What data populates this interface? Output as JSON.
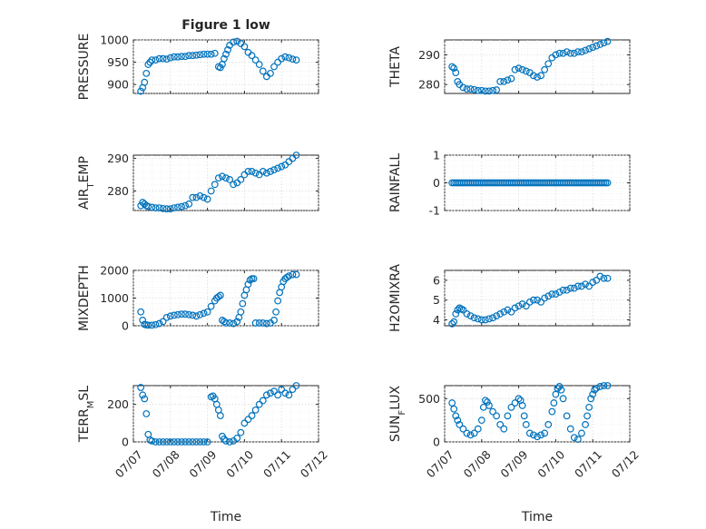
{
  "chart_data": [
    {
      "type": "scatter",
      "title": "Figure 1 low",
      "ylabel": "PRESSURE",
      "xlabel": "",
      "ylim": [
        880,
        1000
      ],
      "yticks": [
        900,
        950,
        1000
      ],
      "xlim": [
        0,
        5
      ],
      "xticks": [
        0,
        1,
        2,
        3,
        4,
        5
      ],
      "xtick_labels": [
        "07/07",
        "07/08",
        "07/09",
        "07/10",
        "07/11",
        "07/12"
      ],
      "color": "#0072bd",
      "x": [
        0.2,
        0.25,
        0.3,
        0.35,
        0.4,
        0.45,
        0.5,
        0.6,
        0.7,
        0.8,
        0.9,
        1.0,
        1.1,
        1.2,
        1.3,
        1.4,
        1.5,
        1.6,
        1.7,
        1.8,
        1.9,
        2.0,
        2.1,
        2.2,
        2.3,
        2.35,
        2.4,
        2.45,
        2.5,
        2.55,
        2.6,
        2.7,
        2.8,
        2.9,
        3.0,
        3.1,
        3.2,
        3.3,
        3.4,
        3.5,
        3.6,
        3.7,
        3.8,
        3.9,
        4.0,
        4.1,
        4.2,
        4.3,
        4.4
      ],
      "y": [
        885,
        893,
        905,
        925,
        945,
        950,
        955,
        955,
        958,
        958,
        957,
        960,
        962,
        962,
        963,
        963,
        965,
        965,
        966,
        967,
        968,
        968,
        968,
        970,
        940,
        938,
        945,
        958,
        968,
        978,
        988,
        995,
        997,
        992,
        985,
        972,
        965,
        955,
        945,
        930,
        918,
        925,
        940,
        950,
        958,
        962,
        960,
        957,
        955
      ]
    },
    {
      "type": "scatter",
      "ylabel": "THETA",
      "xlabel": "",
      "ylim": [
        277,
        295
      ],
      "yticks": [
        280,
        290
      ],
      "xlim": [
        0,
        5
      ],
      "xticks": [
        0,
        1,
        2,
        3,
        4,
        5
      ],
      "xtick_labels": [
        "07/07",
        "07/08",
        "07/09",
        "07/10",
        "07/11",
        "07/12"
      ],
      "color": "#0072bd",
      "x": [
        0.2,
        0.25,
        0.3,
        0.35,
        0.4,
        0.5,
        0.6,
        0.7,
        0.8,
        0.9,
        1.0,
        1.1,
        1.2,
        1.3,
        1.4,
        1.5,
        1.6,
        1.7,
        1.8,
        1.9,
        2.0,
        2.1,
        2.2,
        2.3,
        2.4,
        2.5,
        2.6,
        2.7,
        2.8,
        2.9,
        3.0,
        3.1,
        3.2,
        3.3,
        3.4,
        3.5,
        3.6,
        3.7,
        3.8,
        3.9,
        4.0,
        4.1,
        4.2,
        4.3,
        4.4
      ],
      "y": [
        286,
        285.5,
        284,
        281,
        280,
        279,
        278.5,
        278.5,
        278.3,
        278,
        278,
        277.8,
        277.8,
        278,
        278.2,
        281,
        281,
        281.5,
        282,
        285,
        285.5,
        285,
        284.5,
        284,
        283,
        282.5,
        283,
        285,
        287,
        289,
        290,
        290.5,
        290.5,
        291,
        290.5,
        290.5,
        291,
        291,
        291.5,
        292,
        292.5,
        293,
        293.5,
        294,
        294.5
      ]
    },
    {
      "type": "scatter",
      "ylabel": "AIR_TEMP",
      "xlabel": "",
      "ylim": [
        274,
        291
      ],
      "yticks": [
        280,
        290
      ],
      "xlim": [
        0,
        5
      ],
      "xticks": [
        0,
        1,
        2,
        3,
        4,
        5
      ],
      "xtick_labels": [
        "07/07",
        "07/08",
        "07/09",
        "07/10",
        "07/11",
        "07/12"
      ],
      "color": "#0072bd",
      "x": [
        0.2,
        0.25,
        0.3,
        0.35,
        0.4,
        0.5,
        0.6,
        0.7,
        0.8,
        0.9,
        1.0,
        1.1,
        1.2,
        1.3,
        1.4,
        1.5,
        1.6,
        1.7,
        1.8,
        1.9,
        2.0,
        2.1,
        2.2,
        2.3,
        2.4,
        2.5,
        2.6,
        2.7,
        2.8,
        2.9,
        3.0,
        3.1,
        3.2,
        3.3,
        3.4,
        3.5,
        3.6,
        3.7,
        3.8,
        3.9,
        4.0,
        4.1,
        4.2,
        4.3,
        4.4
      ],
      "y": [
        275.5,
        276.5,
        276,
        275.5,
        275.2,
        275,
        274.8,
        274.8,
        274.6,
        274.5,
        274.5,
        274.8,
        275,
        275.2,
        275.5,
        276,
        278,
        278,
        278.5,
        278,
        277.5,
        280,
        282,
        284,
        284.5,
        284,
        283.5,
        282,
        282.5,
        283.5,
        285,
        286,
        286,
        285.5,
        285,
        286,
        285.5,
        286,
        286.5,
        287,
        287.5,
        288,
        289,
        290,
        291
      ]
    },
    {
      "type": "scatter",
      "ylabel": "RAINFALL",
      "xlabel": "",
      "ylim": [
        -1,
        1
      ],
      "yticks": [
        -1,
        0,
        1
      ],
      "xlim": [
        0,
        5
      ],
      "xticks": [
        0,
        1,
        2,
        3,
        4,
        5
      ],
      "xtick_labels": [
        "07/07",
        "07/08",
        "07/09",
        "07/10",
        "07/11",
        "07/12"
      ],
      "color": "#0072bd",
      "x": [
        0.2,
        0.25,
        0.3,
        0.35,
        0.4,
        0.45,
        0.5,
        0.55,
        0.6,
        0.65,
        0.7,
        0.75,
        0.8,
        0.85,
        0.9,
        0.95,
        1.0,
        1.05,
        1.1,
        1.15,
        1.2,
        1.25,
        1.3,
        1.35,
        1.4,
        1.45,
        1.5,
        1.55,
        1.6,
        1.65,
        1.7,
        1.75,
        1.8,
        1.85,
        1.9,
        1.95,
        2.0,
        2.05,
        2.1,
        2.15,
        2.2,
        2.25,
        2.3,
        2.35,
        2.4,
        2.45,
        2.5,
        2.55,
        2.6,
        2.65,
        2.7,
        2.75,
        2.8,
        2.85,
        2.9,
        2.95,
        3.0,
        3.05,
        3.1,
        3.15,
        3.2,
        3.25,
        3.3,
        3.35,
        3.4,
        3.45,
        3.5,
        3.55,
        3.6,
        3.65,
        3.7,
        3.75,
        3.8,
        3.85,
        3.9,
        3.95,
        4.0,
        4.05,
        4.1,
        4.15,
        4.2,
        4.25,
        4.3,
        4.35,
        4.4
      ],
      "y": [
        0,
        0,
        0,
        0,
        0,
        0,
        0,
        0,
        0,
        0,
        0,
        0,
        0,
        0,
        0,
        0,
        0,
        0,
        0,
        0,
        0,
        0,
        0,
        0,
        0,
        0,
        0,
        0,
        0,
        0,
        0,
        0,
        0,
        0,
        0,
        0,
        0,
        0,
        0,
        0,
        0,
        0,
        0,
        0,
        0,
        0,
        0,
        0,
        0,
        0,
        0,
        0,
        0,
        0,
        0,
        0,
        0,
        0,
        0,
        0,
        0,
        0,
        0,
        0,
        0,
        0,
        0,
        0,
        0,
        0,
        0,
        0,
        0,
        0,
        0,
        0,
        0,
        0,
        0,
        0,
        0,
        0,
        0,
        0,
        0
      ]
    },
    {
      "type": "scatter",
      "ylabel": "MIXDEPTH",
      "xlabel": "",
      "ylim": [
        0,
        2000
      ],
      "yticks": [
        0,
        1000,
        2000
      ],
      "xlim": [
        0,
        5
      ],
      "xticks": [
        0,
        1,
        2,
        3,
        4,
        5
      ],
      "xtick_labels": [
        "07/07",
        "07/08",
        "07/09",
        "07/10",
        "07/11",
        "07/12"
      ],
      "color": "#0072bd",
      "x": [
        0.2,
        0.25,
        0.3,
        0.35,
        0.4,
        0.5,
        0.6,
        0.7,
        0.8,
        0.9,
        1.0,
        1.1,
        1.2,
        1.3,
        1.4,
        1.5,
        1.6,
        1.7,
        1.8,
        1.9,
        2.0,
        2.1,
        2.2,
        2.25,
        2.3,
        2.35,
        2.4,
        2.45,
        2.5,
        2.6,
        2.7,
        2.8,
        2.85,
        2.9,
        2.95,
        3.0,
        3.05,
        3.1,
        3.15,
        3.2,
        3.25,
        3.3,
        3.4,
        3.5,
        3.6,
        3.7,
        3.8,
        3.85,
        3.9,
        3.95,
        4.0,
        4.05,
        4.1,
        4.15,
        4.2,
        4.3,
        4.4
      ],
      "y": [
        500,
        200,
        50,
        30,
        20,
        20,
        40,
        80,
        150,
        300,
        350,
        380,
        400,
        420,
        420,
        400,
        380,
        350,
        400,
        450,
        500,
        700,
        900,
        1000,
        1050,
        1100,
        200,
        150,
        100,
        100,
        80,
        150,
        300,
        500,
        800,
        1100,
        1300,
        1500,
        1650,
        1700,
        1700,
        100,
        100,
        100,
        80,
        100,
        200,
        500,
        900,
        1200,
        1400,
        1600,
        1700,
        1750,
        1800,
        1850,
        1850
      ]
    },
    {
      "type": "scatter",
      "ylabel": "H2OMIXRA",
      "xlabel": "",
      "ylim": [
        3.7,
        6.5
      ],
      "yticks": [
        4,
        5,
        6
      ],
      "xlim": [
        0,
        5
      ],
      "xticks": [
        0,
        1,
        2,
        3,
        4,
        5
      ],
      "xtick_labels": [
        "07/07",
        "07/08",
        "07/09",
        "07/10",
        "07/11",
        "07/12"
      ],
      "color": "#0072bd",
      "x": [
        0.2,
        0.25,
        0.3,
        0.35,
        0.4,
        0.45,
        0.5,
        0.6,
        0.7,
        0.8,
        0.9,
        1.0,
        1.1,
        1.2,
        1.3,
        1.4,
        1.5,
        1.6,
        1.7,
        1.8,
        1.9,
        2.0,
        2.1,
        2.2,
        2.3,
        2.4,
        2.5,
        2.6,
        2.7,
        2.8,
        2.9,
        3.0,
        3.1,
        3.2,
        3.3,
        3.4,
        3.5,
        3.6,
        3.7,
        3.8,
        3.9,
        4.0,
        4.1,
        4.2,
        4.3,
        4.4
      ],
      "y": [
        3.8,
        3.9,
        4.3,
        4.5,
        4.6,
        4.55,
        4.5,
        4.3,
        4.2,
        4.1,
        4.05,
        4.0,
        4.0,
        4.05,
        4.1,
        4.2,
        4.3,
        4.4,
        4.5,
        4.4,
        4.6,
        4.7,
        4.8,
        4.7,
        4.9,
        5.0,
        5.0,
        4.9,
        5.1,
        5.2,
        5.3,
        5.3,
        5.4,
        5.5,
        5.5,
        5.6,
        5.6,
        5.7,
        5.7,
        5.8,
        5.7,
        5.9,
        6.0,
        6.2,
        6.1,
        6.1
      ]
    },
    {
      "type": "scatter",
      "ylabel": "TERR_MSL",
      "xlabel": "Time",
      "ylim": [
        0,
        300
      ],
      "yticks": [
        0,
        200
      ],
      "xlim": [
        0,
        5
      ],
      "xticks": [
        0,
        1,
        2,
        3,
        4,
        5
      ],
      "xtick_labels": [
        "07/07",
        "07/08",
        "07/09",
        "07/10",
        "07/11",
        "07/12"
      ],
      "color": "#0072bd",
      "x": [
        0.2,
        0.25,
        0.3,
        0.35,
        0.4,
        0.45,
        0.5,
        0.6,
        0.7,
        0.8,
        0.9,
        1.0,
        1.1,
        1.2,
        1.3,
        1.4,
        1.5,
        1.6,
        1.7,
        1.8,
        1.9,
        2.0,
        2.1,
        2.15,
        2.2,
        2.25,
        2.3,
        2.35,
        2.4,
        2.45,
        2.5,
        2.6,
        2.7,
        2.8,
        2.9,
        3.0,
        3.1,
        3.2,
        3.3,
        3.4,
        3.5,
        3.6,
        3.7,
        3.8,
        3.9,
        4.0,
        4.1,
        4.2,
        4.3,
        4.4
      ],
      "y": [
        290,
        250,
        230,
        150,
        40,
        10,
        5,
        0,
        0,
        0,
        0,
        0,
        0,
        0,
        0,
        0,
        0,
        0,
        0,
        0,
        0,
        0,
        240,
        245,
        230,
        200,
        170,
        140,
        30,
        15,
        5,
        0,
        5,
        20,
        50,
        100,
        120,
        140,
        170,
        200,
        220,
        250,
        260,
        270,
        250,
        280,
        260,
        250,
        280,
        300
      ]
    },
    {
      "type": "scatter",
      "ylabel": "SUN_FLUX",
      "xlabel": "Time",
      "ylim": [
        0,
        650
      ],
      "yticks": [
        0,
        500
      ],
      "xlim": [
        0,
        5
      ],
      "xticks": [
        0,
        1,
        2,
        3,
        4,
        5
      ],
      "xtick_labels": [
        "07/07",
        "07/08",
        "07/09",
        "07/10",
        "07/11",
        "07/12"
      ],
      "color": "#0072bd",
      "x": [
        0.2,
        0.25,
        0.3,
        0.35,
        0.4,
        0.5,
        0.6,
        0.7,
        0.8,
        0.9,
        1.0,
        1.05,
        1.1,
        1.15,
        1.2,
        1.3,
        1.4,
        1.5,
        1.6,
        1.7,
        1.8,
        1.9,
        2.0,
        2.05,
        2.1,
        2.15,
        2.2,
        2.3,
        2.4,
        2.5,
        2.6,
        2.7,
        2.8,
        2.9,
        2.95,
        3.0,
        3.05,
        3.1,
        3.15,
        3.2,
        3.3,
        3.4,
        3.5,
        3.6,
        3.7,
        3.8,
        3.85,
        3.9,
        3.95,
        4.0,
        4.05,
        4.1,
        4.2,
        4.3,
        4.4
      ],
      "y": [
        450,
        380,
        300,
        250,
        200,
        150,
        100,
        80,
        100,
        150,
        250,
        400,
        480,
        460,
        420,
        350,
        300,
        200,
        150,
        300,
        400,
        450,
        500,
        480,
        420,
        300,
        200,
        100,
        80,
        60,
        80,
        100,
        200,
        350,
        450,
        550,
        620,
        640,
        600,
        500,
        300,
        150,
        50,
        30,
        100,
        200,
        300,
        400,
        500,
        550,
        600,
        620,
        640,
        650,
        650
      ]
    }
  ]
}
